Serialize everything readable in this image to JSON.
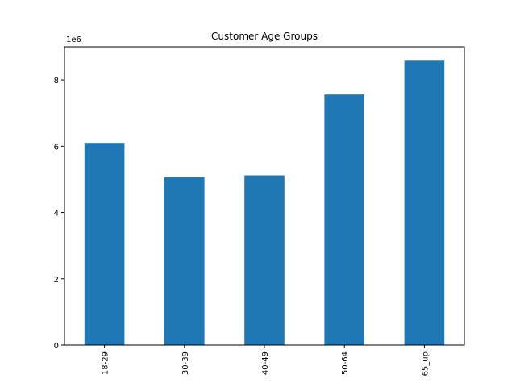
{
  "chart_data": {
    "type": "bar",
    "title": "Customer Age Groups",
    "xlabel": "",
    "ylabel": "",
    "categories": [
      "18-29",
      "30-39",
      "40-49",
      "50-64",
      "65_up"
    ],
    "values": [
      6100000,
      5070000,
      5120000,
      7560000,
      8580000
    ],
    "ylim": [
      0,
      9000000
    ],
    "y_ticks": [
      0,
      2000000,
      4000000,
      6000000,
      8000000
    ],
    "y_tick_labels": [
      "0",
      "2",
      "4",
      "6",
      "8"
    ],
    "y_offset_label": "1e6",
    "bar_color": "#1f77b4",
    "grid": false,
    "legend": "none"
  }
}
